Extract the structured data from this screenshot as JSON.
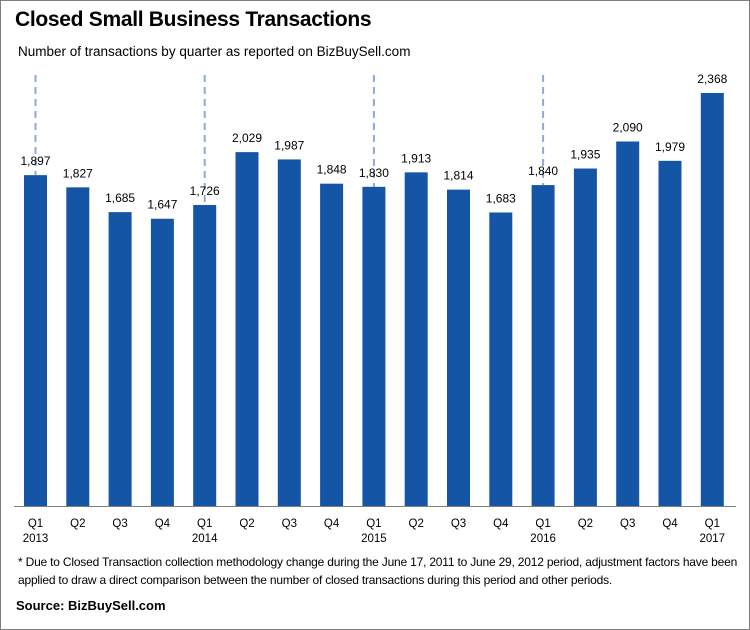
{
  "chart_data": {
    "type": "bar",
    "title": "Closed Small Business Transactions",
    "subtitle": "Number of transactions by quarter as reported on BizBuySell.com",
    "categories": [
      "Q1 2013",
      "Q2 2013",
      "Q3 2013",
      "Q4 2013",
      "Q1 2014",
      "Q2 2014",
      "Q3 2014",
      "Q4 2014",
      "Q1 2015",
      "Q2 2015",
      "Q3 2015",
      "Q4 2015",
      "Q1 2016",
      "Q2 2016",
      "Q3 2016",
      "Q4 2016",
      "Q1 2017"
    ],
    "tick_labels": [
      {
        "q": "Q1",
        "year": "2013"
      },
      {
        "q": "Q2",
        "year": ""
      },
      {
        "q": "Q3",
        "year": ""
      },
      {
        "q": "Q4",
        "year": ""
      },
      {
        "q": "Q1",
        "year": "2014"
      },
      {
        "q": "Q2",
        "year": ""
      },
      {
        "q": "Q3",
        "year": ""
      },
      {
        "q": "Q4",
        "year": ""
      },
      {
        "q": "Q1",
        "year": "2015"
      },
      {
        "q": "Q2",
        "year": ""
      },
      {
        "q": "Q3",
        "year": ""
      },
      {
        "q": "Q4",
        "year": ""
      },
      {
        "q": "Q1",
        "year": "2016"
      },
      {
        "q": "Q2",
        "year": ""
      },
      {
        "q": "Q3",
        "year": ""
      },
      {
        "q": "Q4",
        "year": ""
      },
      {
        "q": "Q1",
        "year": "2017"
      }
    ],
    "values": [
      1897,
      1827,
      1685,
      1647,
      1726,
      2029,
      1987,
      1848,
      1830,
      1913,
      1814,
      1683,
      1840,
      1935,
      2090,
      1979,
      2368
    ],
    "data_labels": [
      "1,897",
      "1,827",
      "1,685",
      "1,647",
      "1,726",
      "2,029",
      "1,987",
      "1,848",
      "1,830",
      "1,913",
      "1,814",
      "1,683",
      "1,840",
      "1,935",
      "2,090",
      "1,979",
      "2,368"
    ],
    "year_dividers_at": [
      0,
      4,
      8,
      12
    ],
    "xlabel": "",
    "ylabel": "",
    "ylim": [
      0,
      2368
    ],
    "grid": false,
    "legend": "none",
    "colors": {
      "bar": "#1555A5",
      "divider": "#8EAADB",
      "axis": "#7f7f7f"
    }
  },
  "footnote": "* Due to Closed Transaction collection methodology change during the June 17, 2011 to June 29, 2012 period, adjustment factors have been applied to draw a direct comparison between the number of closed transactions during this period and other periods.",
  "source": "Source: BizBuySell.com"
}
